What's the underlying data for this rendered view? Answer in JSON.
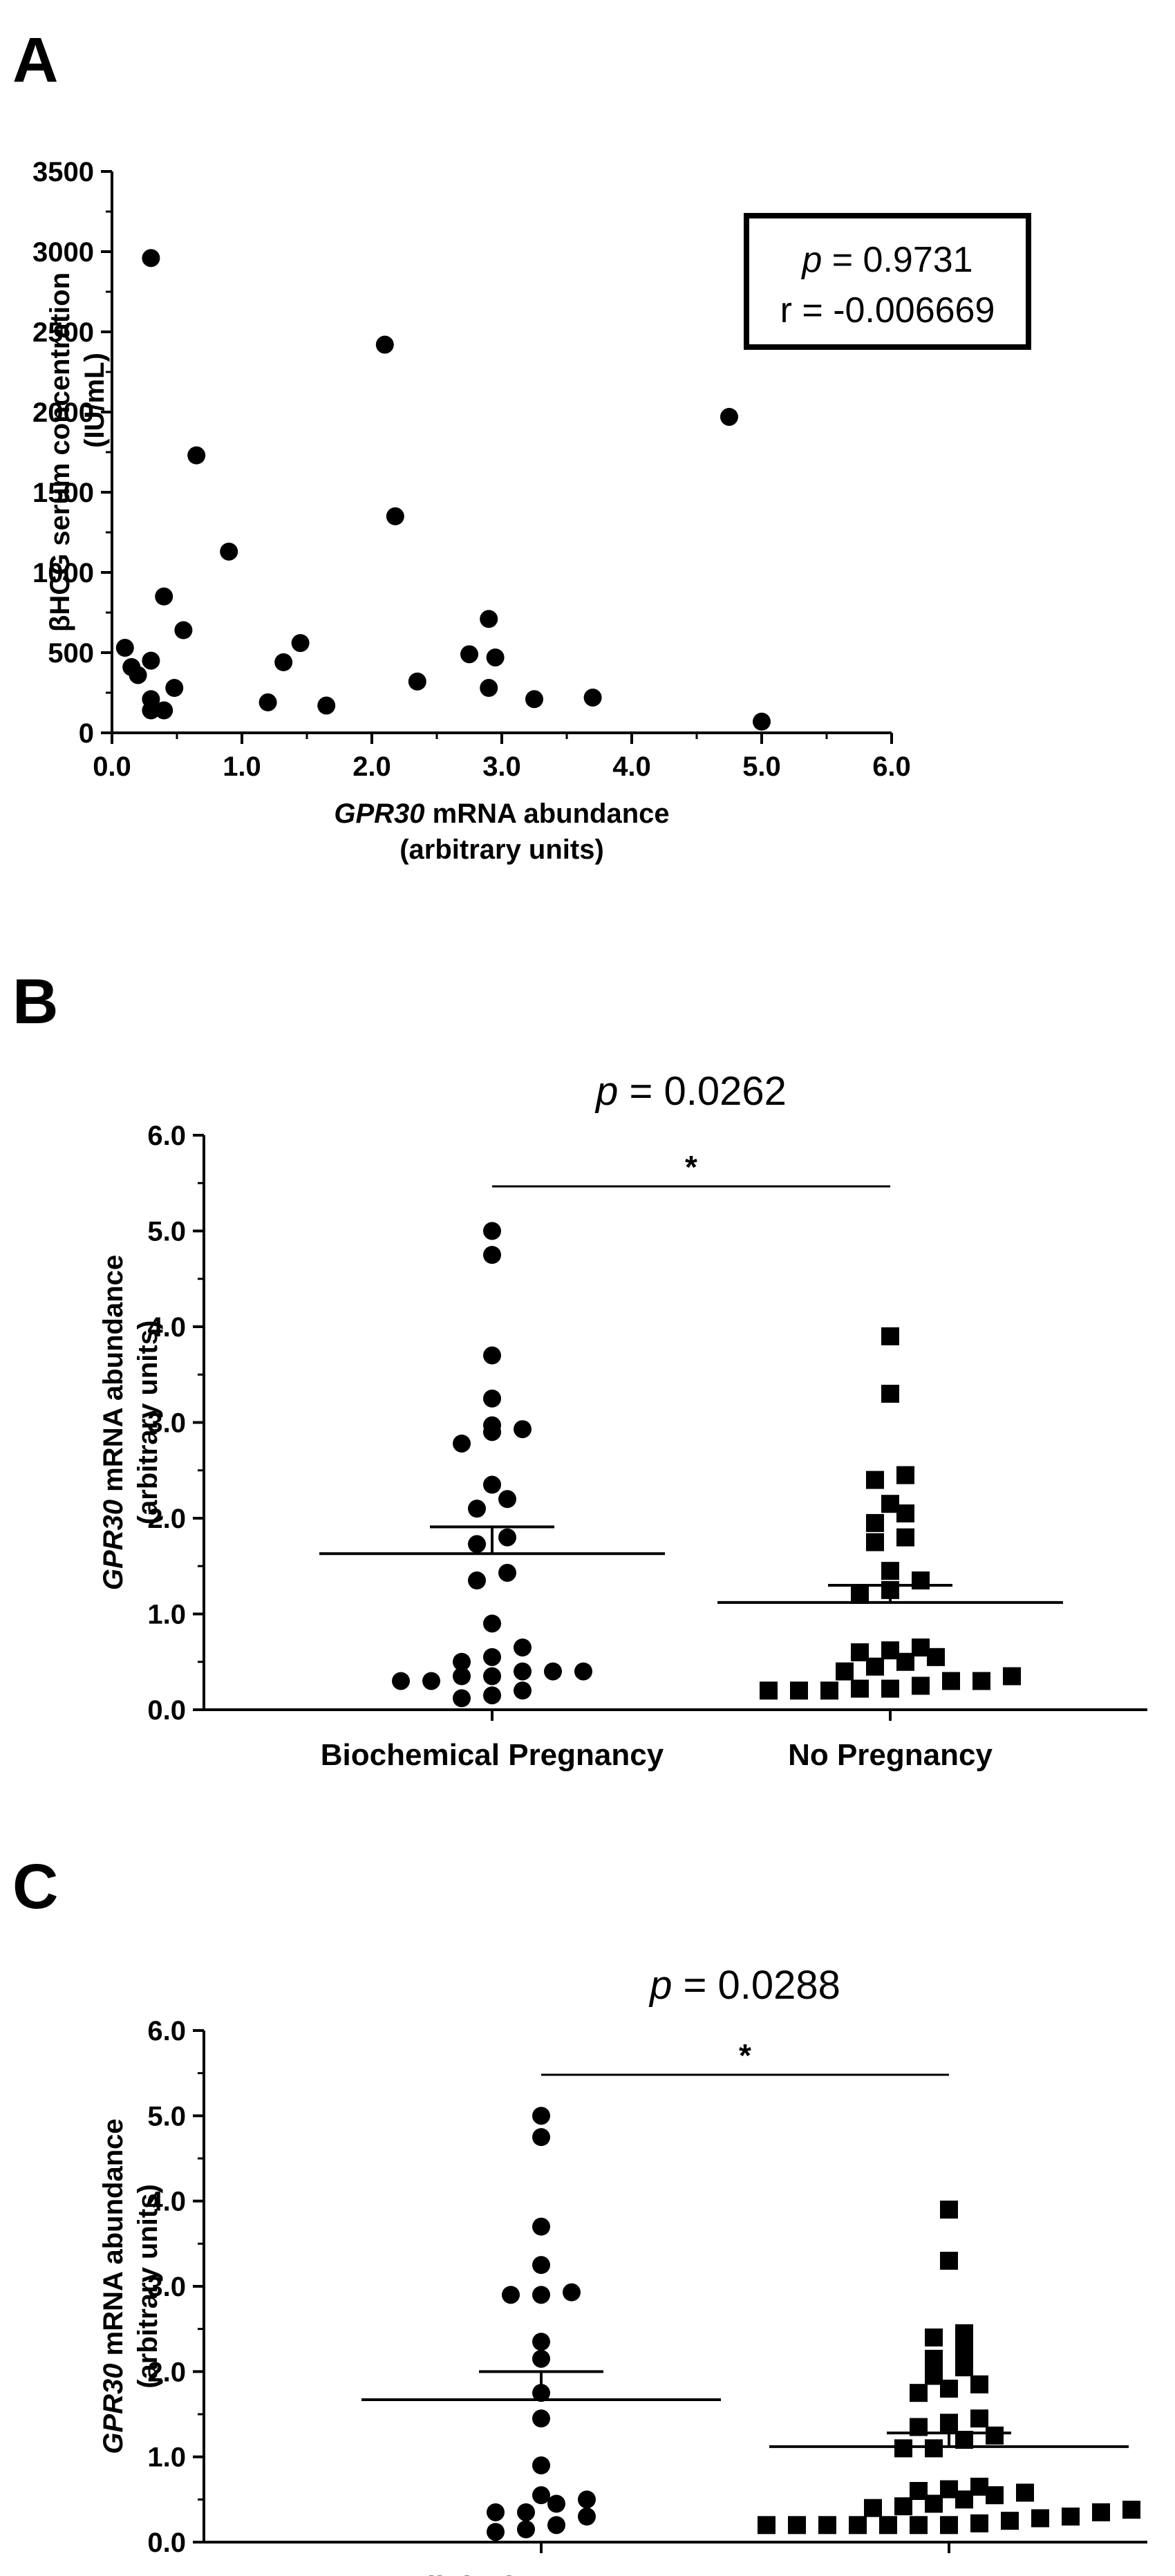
{
  "chart_data": [
    {
      "panel": "A",
      "type": "scatter",
      "xlabel": "GPR30 mRNA abundance",
      "xlabel_italic_part": "GPR30",
      "xlabel_rest": " mRNA abundance",
      "xlabel_line2": "(arbitrary units)",
      "ylabel": "βHCG serum concentration",
      "ylabel_line2": "(IU/mL)",
      "xlim": [
        0,
        6
      ],
      "ylim": [
        0,
        3500
      ],
      "xticks": [
        0,
        1,
        2,
        3,
        4,
        5,
        6
      ],
      "xtick_labels": [
        "0.0",
        "1.0",
        "2.0",
        "3.0",
        "4.0",
        "5.0",
        "6.0"
      ],
      "yticks": [
        0,
        500,
        1000,
        1500,
        2000,
        2500,
        3000,
        3500
      ],
      "ytick_labels": [
        "0",
        "500",
        "1000",
        "1500",
        "2000",
        "2500",
        "3000",
        "3500"
      ],
      "annotation": {
        "p_label": "p",
        "p_value": " = 0.9731",
        "r_text": "r = -0.006669"
      },
      "points": [
        {
          "x": 0.1,
          "y": 530
        },
        {
          "x": 0.15,
          "y": 410
        },
        {
          "x": 0.2,
          "y": 360
        },
        {
          "x": 0.3,
          "y": 2960
        },
        {
          "x": 0.3,
          "y": 450
        },
        {
          "x": 0.3,
          "y": 210
        },
        {
          "x": 0.3,
          "y": 140
        },
        {
          "x": 0.4,
          "y": 850
        },
        {
          "x": 0.4,
          "y": 140
        },
        {
          "x": 0.48,
          "y": 280
        },
        {
          "x": 0.55,
          "y": 640
        },
        {
          "x": 0.65,
          "y": 1730
        },
        {
          "x": 0.9,
          "y": 1130
        },
        {
          "x": 1.2,
          "y": 190
        },
        {
          "x": 1.32,
          "y": 440
        },
        {
          "x": 1.45,
          "y": 560
        },
        {
          "x": 1.65,
          "y": 170
        },
        {
          "x": 2.1,
          "y": 2420
        },
        {
          "x": 2.18,
          "y": 1350
        },
        {
          "x": 2.35,
          "y": 320
        },
        {
          "x": 2.75,
          "y": 490
        },
        {
          "x": 2.9,
          "y": 710
        },
        {
          "x": 2.95,
          "y": 470
        },
        {
          "x": 2.9,
          "y": 280
        },
        {
          "x": 3.25,
          "y": 210
        },
        {
          "x": 3.7,
          "y": 220
        },
        {
          "x": 4.75,
          "y": 1970
        },
        {
          "x": 5.0,
          "y": 70
        }
      ]
    },
    {
      "panel": "B",
      "type": "scatter",
      "ylabel": "GPR30 mRNA abundance",
      "ylabel_italic_part": "GPR30",
      "ylabel_rest": " mRNA abundance",
      "ylabel_line2": "(arbitrary units)",
      "ylim": [
        0,
        6
      ],
      "yticks": [
        0,
        1,
        2,
        3,
        4,
        5,
        6
      ],
      "ytick_labels": [
        "0.0",
        "1.0",
        "2.0",
        "3.0",
        "4.0",
        "5.0",
        "6.0"
      ],
      "categories": [
        "Biochemical Pregnancy",
        "No Pregnancy"
      ],
      "annotation": {
        "p_label": "p",
        "p_value": " = 0.0262",
        "star": "*"
      },
      "series": [
        {
          "marker": "circle",
          "mean": 1.63,
          "mean_plus_sem": 1.91,
          "values": [
            5.0,
            4.75,
            3.7,
            3.25,
            2.97,
            2.93,
            2.9,
            2.78,
            2.35,
            2.2,
            2.1,
            1.8,
            1.73,
            1.43,
            1.35,
            0.9,
            0.65,
            0.55,
            0.5,
            0.4,
            0.4,
            0.4,
            0.35,
            0.35,
            0.3,
            0.3,
            0.2,
            0.15,
            0.12
          ]
        },
        {
          "marker": "square",
          "mean": 1.12,
          "mean_plus_sem": 1.3,
          "values": [
            3.9,
            3.3,
            2.45,
            2.4,
            2.15,
            2.05,
            1.95,
            1.8,
            1.75,
            1.45,
            1.35,
            1.25,
            1.2,
            0.65,
            0.62,
            0.6,
            0.55,
            0.5,
            0.45,
            0.4,
            0.35,
            0.3,
            0.3,
            0.25,
            0.22,
            0.22,
            0.2,
            0.2,
            0.2
          ]
        }
      ]
    },
    {
      "panel": "C",
      "type": "scatter",
      "ylabel": "GPR30 mRNA abundance",
      "ylabel_italic_part": "GPR30",
      "ylabel_rest": " mRNA abundance",
      "ylabel_line2": "(arbitrary units)",
      "ylim": [
        0,
        6
      ],
      "yticks": [
        0,
        1,
        2,
        3,
        4,
        5,
        6
      ],
      "ytick_labels": [
        "0.0",
        "1.0",
        "2.0",
        "3.0",
        "4.0",
        "5.0",
        "6.0"
      ],
      "categories": [
        "Clinical Pregnancy",
        "No Pregnancy"
      ],
      "annotation": {
        "p_label": "p",
        "p_value": " = 0.0288",
        "star": "*"
      },
      "series": [
        {
          "marker": "circle",
          "mean": 1.67,
          "mean_plus_sem": 2.0,
          "values": [
            5.0,
            4.75,
            3.7,
            3.25,
            2.93,
            2.9,
            2.9,
            2.35,
            2.15,
            1.75,
            1.45,
            0.9,
            0.55,
            0.5,
            0.45,
            0.35,
            0.35,
            0.3,
            0.2,
            0.15,
            0.12
          ]
        },
        {
          "marker": "square",
          "mean": 1.12,
          "mean_plus_sem": 1.28,
          "values": [
            3.9,
            3.3,
            2.45,
            2.4,
            2.25,
            2.15,
            2.05,
            1.95,
            1.85,
            1.8,
            1.75,
            1.45,
            1.4,
            1.35,
            1.25,
            1.2,
            1.1,
            1.1,
            0.65,
            0.62,
            0.6,
            0.58,
            0.55,
            0.5,
            0.45,
            0.42,
            0.4,
            0.38,
            0.35,
            0.3,
            0.28,
            0.25,
            0.22,
            0.2,
            0.2,
            0.2,
            0.2,
            0.2,
            0.2,
            0.2
          ]
        }
      ]
    }
  ]
}
